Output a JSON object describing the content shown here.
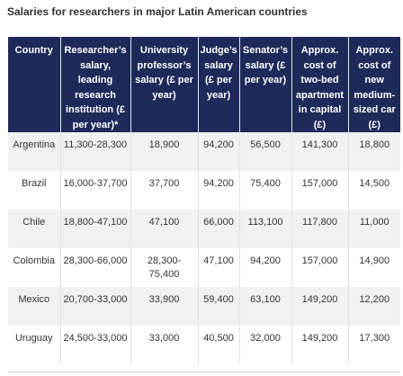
{
  "title": "Salaries for researchers in major Latin American countries",
  "table": {
    "headers": [
      "Country",
      "Researcher’s salary, leading research institution (£ per year)*",
      "University professor’s salary (£ per year)",
      "Judge’s salary (£ per year)",
      "Senator’s salary (£ per year)",
      "Approx. cost of two-bed apartment in capital (£)",
      "Approx. cost of new medium-sized car (£)"
    ],
    "rows": [
      [
        "Argentina",
        "11,300-28,300",
        "18,900",
        "94,200",
        "56,500",
        "141,300",
        "18,800"
      ],
      [
        "Brazil",
        "16,000-37,700",
        "37,700",
        "94,200",
        "75,400",
        "157,000",
        "14,500"
      ],
      [
        "Chile",
        "18,800-47,100",
        "47,100",
        "66,000",
        "113,100",
        "117,800",
        "11,000"
      ],
      [
        "Colombia",
        "28,300-66,000",
        "28,300-75,400",
        "47,100",
        "94,200",
        "157,000",
        "14,900"
      ],
      [
        "Mexico",
        "20,700-33,000",
        "33,900",
        "59,400",
        "63,100",
        "149,200",
        "12,200"
      ],
      [
        "Uruguay",
        "24,500-33,000",
        "33,000",
        "40,500",
        "32,000",
        "149,200",
        "17,300"
      ]
    ]
  },
  "colors": {
    "header_background": "#1f2a5a",
    "header_text": "#ffffff",
    "stripe_background": "#f1f1f1"
  }
}
